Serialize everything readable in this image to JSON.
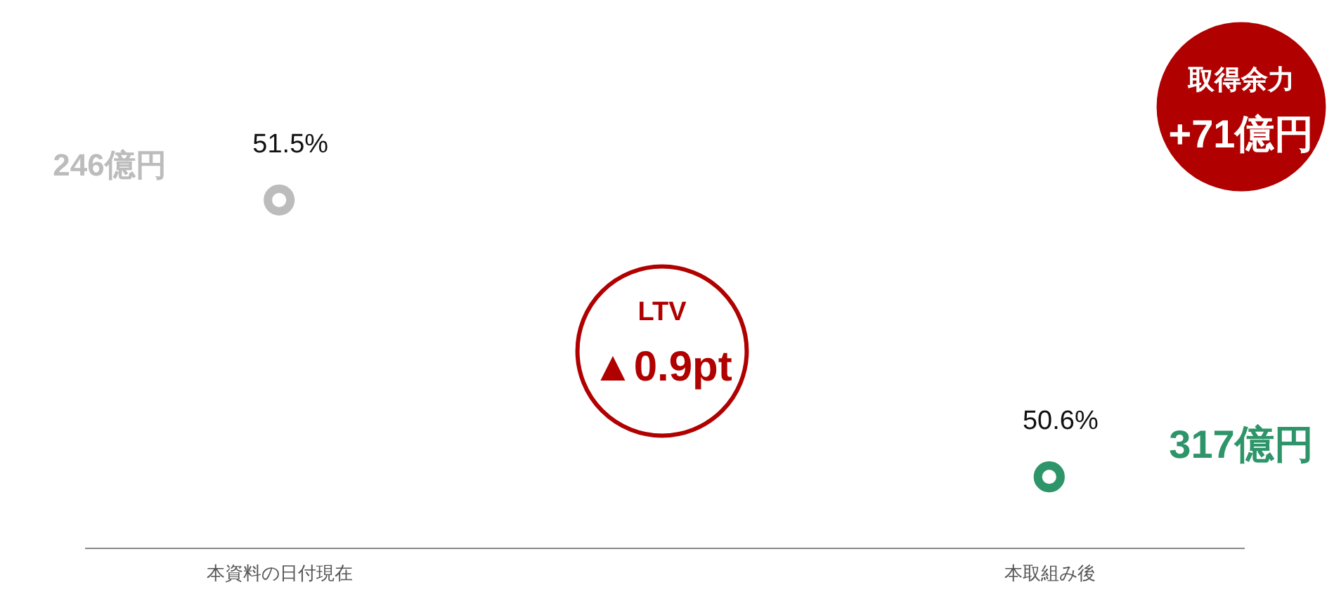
{
  "chart_data": {
    "type": "scatter",
    "categories": [
      "本資料の日付現在",
      "本取組み後"
    ],
    "values": [
      51.5,
      50.6
    ],
    "ylim": [
      50.37,
      52.15
    ],
    "value_labels": [
      "51.5%",
      "50.6%"
    ],
    "colors": [
      "#bcbcbc",
      "#2e9469"
    ],
    "marker": "circle",
    "annotations": [
      "246億円",
      "317億円",
      "取得余力",
      "+71億円",
      "LTV",
      "▲0.9pt"
    ]
  }
}
